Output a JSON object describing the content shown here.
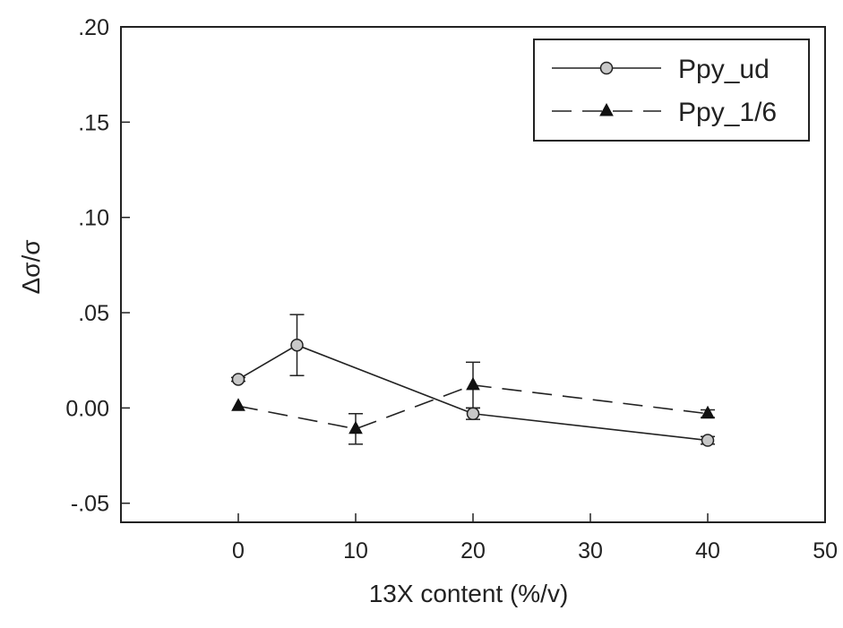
{
  "chart_data": {
    "type": "line",
    "xlabel": "13X content (%/v)",
    "ylabel": "Δσ/σ",
    "xlim": [
      -10,
      50
    ],
    "ylim": [
      -0.06,
      0.2
    ],
    "xticks": [
      0,
      10,
      20,
      30,
      40,
      50
    ],
    "xtick_labels": [
      "0",
      "10",
      "20",
      "30",
      "40",
      "50"
    ],
    "yticks": [
      -0.05,
      0,
      0.05,
      0.1,
      0.15,
      0.2
    ],
    "ytick_labels": [
      "-.05",
      "0.00",
      ".05",
      ".10",
      ".15",
      ".20"
    ],
    "grid": false,
    "legend_position": "top-right",
    "series": [
      {
        "name": "Ppy_ud",
        "marker": "circle",
        "line_style": "solid",
        "marker_color": "#c8c8c8",
        "x": [
          0,
          5,
          20,
          40
        ],
        "y": [
          0.015,
          0.033,
          -0.003,
          -0.017
        ],
        "error": [
          0.001,
          0.016,
          0.003,
          0.002
        ]
      },
      {
        "name": "Ppy_1/6",
        "marker": "triangle",
        "line_style": "dashed",
        "marker_color": "#111111",
        "x": [
          0,
          10,
          20,
          40
        ],
        "y": [
          0.001,
          -0.011,
          0.012,
          -0.003
        ],
        "error": [
          0.0,
          0.008,
          0.012,
          0.002
        ]
      }
    ]
  }
}
